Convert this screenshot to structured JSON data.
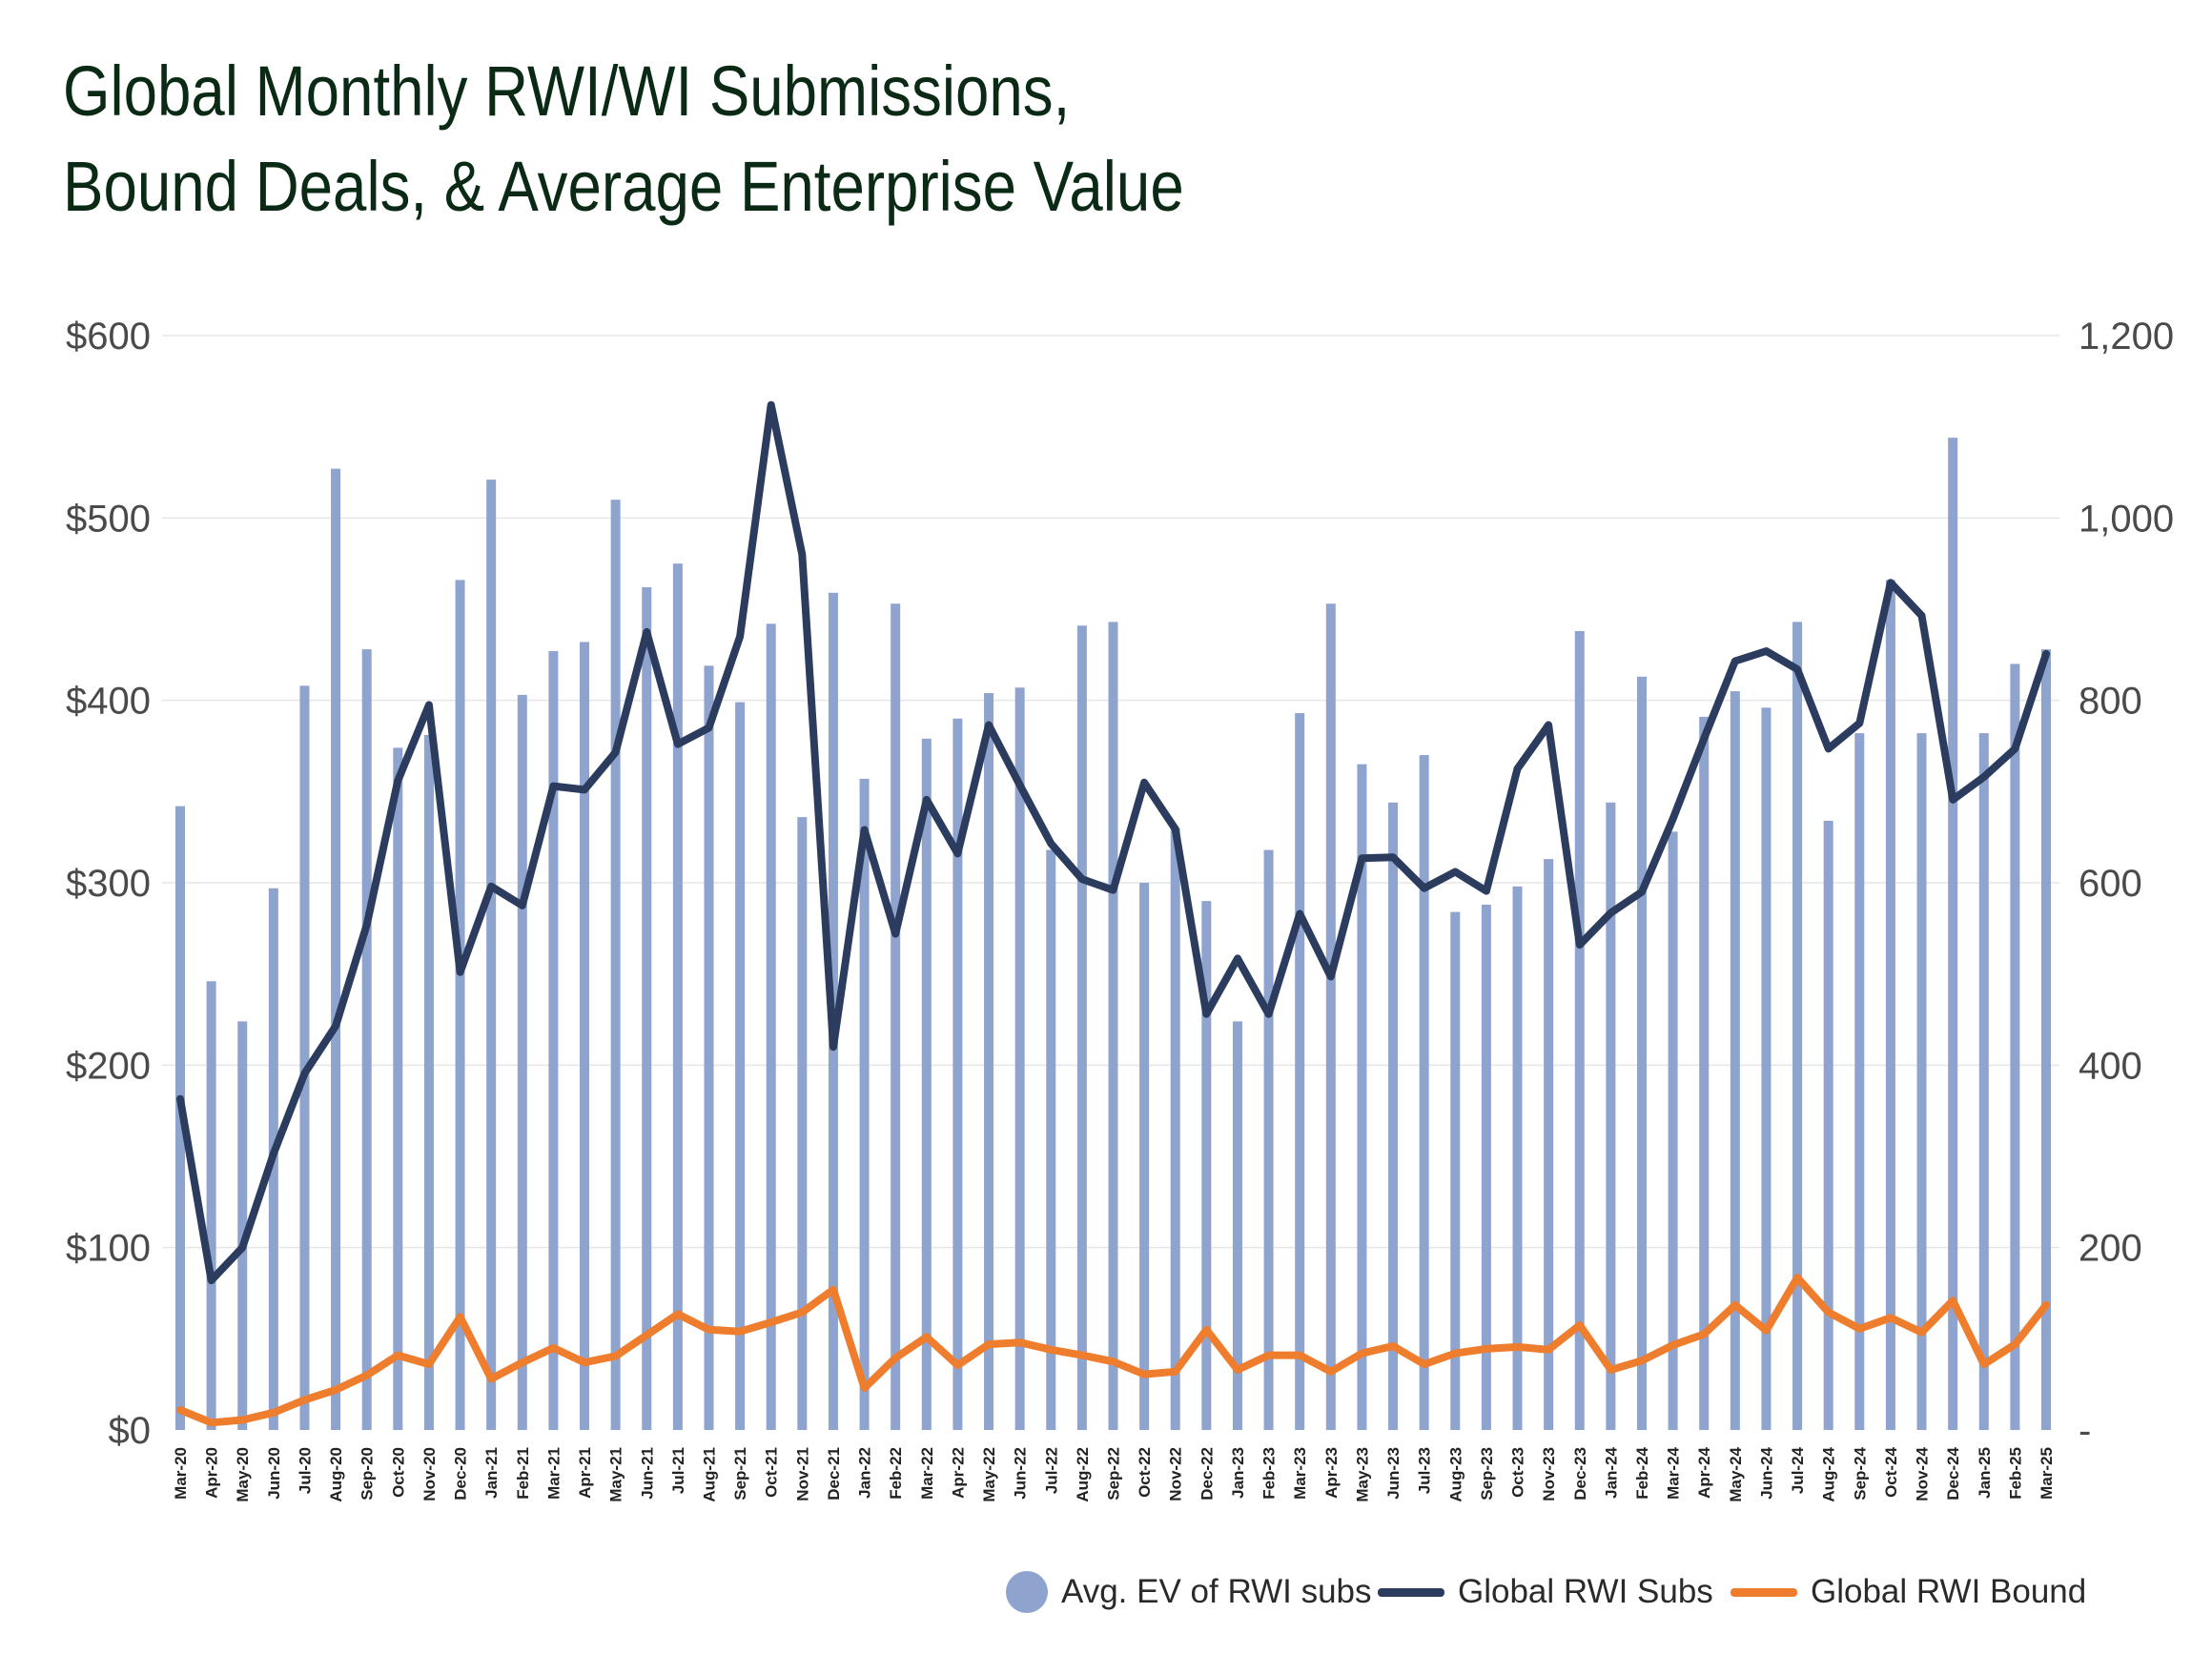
{
  "title_lines": [
    "Global Monthly RWI/WI Submissions,",
    "Bound Deals, & Average Enterprise Value"
  ],
  "colors": {
    "bars": "#8fa3cf",
    "subs": "#2b3c5e",
    "bound": "#ee7d2e",
    "grid": "#e6e6e6",
    "title": "#0b2a16"
  },
  "legend": {
    "ev": "Avg. EV of RWI subs",
    "subs": "Global RWI Subs",
    "bound": "Global RWI Bound"
  },
  "chart_data": {
    "type": "bar+line",
    "title": "Global Monthly RWI/WI Submissions, Bound Deals, & Average Enterprise Value",
    "left_axis": {
      "ticks": [
        "$0",
        "$100",
        "$200",
        "$300",
        "$400",
        "$500",
        "$600"
      ],
      "range": [
        0,
        600
      ]
    },
    "right_axis": {
      "ticks": [
        "-",
        "200",
        "400",
        "600",
        "800",
        "1,000",
        "1,200"
      ],
      "range": [
        0,
        1200
      ]
    },
    "grid": true,
    "legend_position": "bottom-right",
    "categories": [
      "Mar-20",
      "Apr-20",
      "May-20",
      "Jun-20",
      "Jul-20",
      "Aug-20",
      "Sep-20",
      "Oct-20",
      "Nov-20",
      "Dec-20",
      "Jan-21",
      "Feb-21",
      "Mar-21",
      "Apr-21",
      "May-21",
      "Jun-21",
      "Jul-21",
      "Aug-21",
      "Sep-21",
      "Oct-21",
      "Nov-21",
      "Dec-21",
      "Jan-22",
      "Feb-22",
      "Mar-22",
      "Apr-22",
      "May-22",
      "Jun-22",
      "Jul-22",
      "Aug-22",
      "Sep-22",
      "Oct-22",
      "Nov-22",
      "Dec-22",
      "Jan-23",
      "Feb-23",
      "Mar-23",
      "Apr-23",
      "May-23",
      "Jun-23",
      "Jul-23",
      "Aug-23",
      "Sep-23",
      "Oct-23",
      "Nov-23",
      "Dec-23",
      "Jan-24",
      "Feb-24",
      "Mar-24",
      "Apr-24",
      "May-24",
      "Jun-24",
      "Jul-24",
      "Aug-24",
      "Sep-24",
      "Oct-24",
      "Nov-24",
      "Dec-24",
      "Jan-25",
      "Feb-25",
      "Mar-25"
    ],
    "series": [
      {
        "name": "Avg. EV of RWI subs",
        "type": "bar",
        "axis": "left",
        "values": [
          342,
          246,
          224,
          297,
          408,
          527,
          428,
          374,
          381,
          466,
          521,
          403,
          427,
          432,
          510,
          462,
          475,
          419,
          399,
          442,
          336,
          459,
          357,
          453,
          379,
          390,
          404,
          407,
          318,
          441,
          443,
          300,
          330,
          290,
          224,
          318,
          393,
          453,
          365,
          344,
          370,
          284,
          288,
          298,
          313,
          438,
          344,
          413,
          328,
          391,
          405,
          396,
          443,
          334,
          382,
          466,
          382,
          544,
          382,
          420,
          428
        ]
      },
      {
        "name": "Global RWI Subs",
        "type": "line",
        "axis": "right",
        "values": [
          363,
          164,
          200,
          303,
          391,
          443,
          554,
          712,
          795,
          502,
          596,
          575,
          706,
          702,
          743,
          875,
          752,
          770,
          870,
          1124,
          960,
          420,
          658,
          544,
          691,
          632,
          773,
          707,
          643,
          604,
          592,
          710,
          659,
          456,
          517,
          456,
          566,
          497,
          627,
          628,
          594,
          612,
          591,
          725,
          773,
          532,
          567,
          590,
          670,
          758,
          843,
          854,
          834,
          747,
          775,
          929,
          893,
          691,
          716,
          747,
          851
        ]
      },
      {
        "name": "Global RWI Bound",
        "type": "line",
        "axis": "right",
        "values": [
          22,
          8,
          11,
          19,
          33,
          44,
          60,
          82,
          72,
          124,
          56,
          74,
          90,
          74,
          81,
          104,
          127,
          110,
          108,
          118,
          129,
          154,
          46,
          79,
          102,
          71,
          94,
          96,
          88,
          82,
          75,
          61,
          64,
          110,
          66,
          82,
          82,
          64,
          84,
          92,
          72,
          84,
          89,
          91,
          88,
          115,
          66,
          76,
          93,
          105,
          137,
          109,
          167,
          129,
          111,
          123,
          107,
          142,
          72,
          94,
          137
        ]
      }
    ]
  }
}
